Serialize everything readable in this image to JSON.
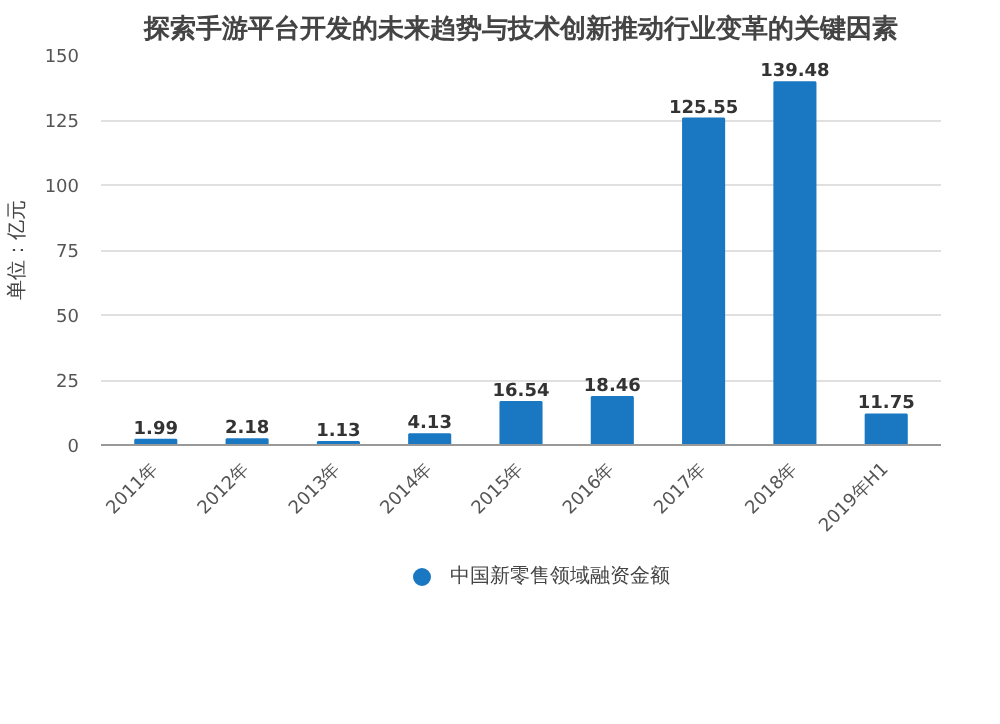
{
  "chart_data": {
    "type": "bar",
    "title": "探索手游平台开发的未来趋势与技术创新推动行业变革的关键因素",
    "ylabel": "单位：亿元",
    "categories": [
      "2011年",
      "2012年",
      "2013年",
      "2014年",
      "2015年",
      "2016年",
      "2017年",
      "2018年",
      "2019年H1"
    ],
    "series": [
      {
        "name": "中国新零售领域融资金额",
        "color": "#1a78c2",
        "values": [
          1.99,
          2.18,
          1.13,
          4.13,
          16.54,
          18.46,
          125.55,
          139.48,
          11.75
        ]
      }
    ],
    "ylim": [
      0,
      150
    ],
    "yticks": [
      0,
      25,
      50,
      75,
      100,
      125,
      150
    ],
    "grid": "y",
    "data_labels": true,
    "legend": "bottom"
  }
}
